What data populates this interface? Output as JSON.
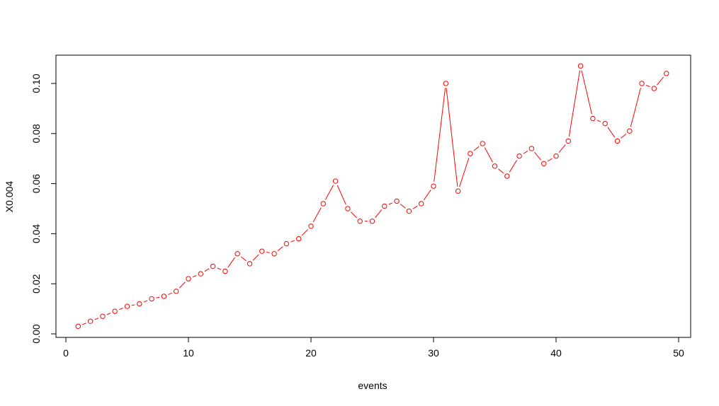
{
  "chart_data": {
    "type": "line",
    "title": "",
    "xlabel": "events",
    "ylabel": "X0.004",
    "xlim": [
      0,
      50
    ],
    "ylim": [
      0,
      0.11
    ],
    "x_ticks": [
      0,
      10,
      20,
      30,
      40,
      50
    ],
    "x_tick_labels": [
      "0",
      "10",
      "20",
      "30",
      "40",
      "50"
    ],
    "y_ticks": [
      0,
      0.02,
      0.04,
      0.06,
      0.08,
      0.1
    ],
    "y_tick_labels": [
      "0.00",
      "0.02",
      "0.04",
      "0.06",
      "0.08",
      "0.10"
    ],
    "grid": false,
    "legend": "none",
    "series": [
      {
        "color": "#ff0000",
        "marker": "open-circle",
        "x": [
          1,
          2,
          3,
          4,
          5,
          6,
          7,
          8,
          9,
          10,
          11,
          12,
          13,
          14,
          15,
          16,
          17,
          18,
          19,
          20,
          21,
          22,
          23,
          24,
          25,
          26,
          27,
          28,
          29,
          30,
          31,
          32,
          33,
          34,
          35,
          36,
          37,
          38,
          39,
          40,
          41,
          42,
          43,
          44,
          45,
          46,
          47,
          48,
          49
        ],
        "y": [
          0.003,
          0.005,
          0.007,
          0.009,
          0.011,
          0.012,
          0.014,
          0.015,
          0.017,
          0.022,
          0.024,
          0.027,
          0.025,
          0.032,
          0.028,
          0.033,
          0.032,
          0.036,
          0.038,
          0.043,
          0.052,
          0.061,
          0.05,
          0.045,
          0.045,
          0.051,
          0.053,
          0.049,
          0.052,
          0.059,
          0.1,
          0.057,
          0.072,
          0.076,
          0.067,
          0.063,
          0.071,
          0.074,
          0.068,
          0.071,
          0.077,
          0.107,
          0.086,
          0.084,
          0.077,
          0.081,
          0.1,
          0.098,
          0.104
        ]
      }
    ]
  }
}
